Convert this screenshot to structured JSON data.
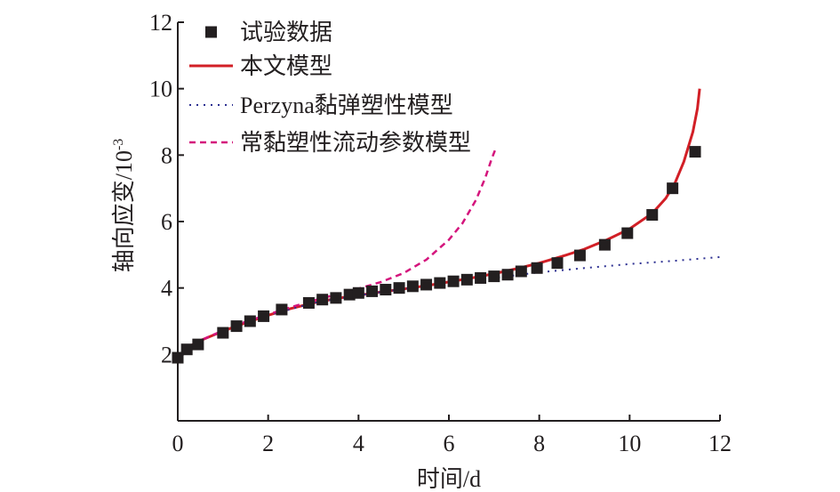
{
  "chart_data": {
    "type": "line",
    "xlabel": "时间/d",
    "ylabel": "轴向应变/10",
    "ylabel_exponent": "-3",
    "xlim": [
      0,
      12
    ],
    "ylim": [
      0,
      12
    ],
    "xticks": [
      0,
      2,
      4,
      6,
      8,
      10,
      12
    ],
    "yticks": [
      2,
      4,
      6,
      8,
      10,
      12
    ],
    "grid": false,
    "legend_position": "top-left",
    "series": [
      {
        "name": "试验数据",
        "kind": "scatter",
        "marker": "square",
        "color": "#231f20",
        "x": [
          0.0,
          0.2,
          0.45,
          1.0,
          1.3,
          1.6,
          1.9,
          2.3,
          2.9,
          3.2,
          3.5,
          3.8,
          4.0,
          4.3,
          4.6,
          4.9,
          5.2,
          5.5,
          5.8,
          6.1,
          6.4,
          6.7,
          7.0,
          7.3,
          7.6,
          7.95,
          8.4,
          8.9,
          9.45,
          9.95,
          10.5,
          10.95,
          11.45
        ],
        "y": [
          1.9,
          2.15,
          2.3,
          2.65,
          2.85,
          3.0,
          3.15,
          3.35,
          3.55,
          3.65,
          3.7,
          3.8,
          3.85,
          3.9,
          3.95,
          4.0,
          4.05,
          4.1,
          4.15,
          4.2,
          4.25,
          4.3,
          4.35,
          4.4,
          4.5,
          4.6,
          4.75,
          4.98,
          5.3,
          5.65,
          6.2,
          7.0,
          8.1
        ]
      },
      {
        "name": "本文模型",
        "kind": "line",
        "dash": "solid",
        "color": "#d21f26",
        "x": [
          0.0,
          0.2,
          0.5,
          1.0,
          1.5,
          2.0,
          2.5,
          3.0,
          3.5,
          4.0,
          4.5,
          5.0,
          5.5,
          6.0,
          6.5,
          7.0,
          7.5,
          8.0,
          8.5,
          9.0,
          9.5,
          10.0,
          10.5,
          10.8,
          11.0,
          11.2,
          11.4,
          11.5,
          11.55
        ],
        "y": [
          1.9,
          2.2,
          2.42,
          2.7,
          2.95,
          3.18,
          3.38,
          3.55,
          3.68,
          3.78,
          3.88,
          3.97,
          4.07,
          4.18,
          4.3,
          4.43,
          4.58,
          4.75,
          4.95,
          5.17,
          5.45,
          5.78,
          6.25,
          6.7,
          7.15,
          7.8,
          8.7,
          9.4,
          10.0
        ]
      },
      {
        "name": "Perzyna黏弹塑性模型",
        "kind": "line",
        "dash": "dotted",
        "color": "#2e3192",
        "x": [
          0.0,
          0.5,
          1.0,
          2.0,
          3.0,
          4.0,
          5.0,
          6.0,
          7.0,
          8.0,
          9.0,
          10.0,
          11.0,
          12.0
        ],
        "y": [
          1.9,
          2.42,
          2.7,
          3.18,
          3.55,
          3.78,
          3.97,
          4.15,
          4.3,
          4.47,
          4.6,
          4.72,
          4.82,
          4.93
        ]
      },
      {
        "name": "常黏塑性流动参数模型",
        "kind": "line",
        "dash": "dashed",
        "color": "#d4147c",
        "x": [
          0.0,
          0.2,
          0.5,
          1.0,
          1.5,
          2.0,
          2.5,
          3.0,
          3.5,
          4.0,
          4.5,
          5.0,
          5.5,
          6.0,
          6.3,
          6.6,
          6.8,
          6.95,
          7.05
        ],
        "y": [
          1.9,
          2.2,
          2.42,
          2.72,
          2.98,
          3.2,
          3.42,
          3.62,
          3.8,
          3.98,
          4.18,
          4.45,
          4.85,
          5.45,
          5.95,
          6.65,
          7.3,
          7.9,
          8.25
        ]
      }
    ]
  }
}
